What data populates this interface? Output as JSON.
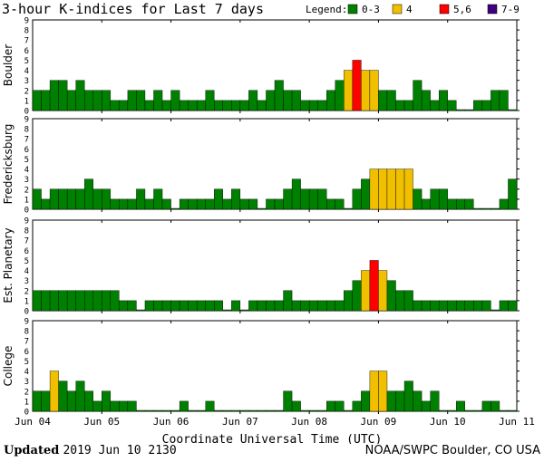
{
  "chart_data": {
    "type": "bar",
    "title": "3-hour K-indices for Last 7 days",
    "xlabel": "Coordinate Universal Time (UTC)",
    "ylim": [
      0,
      9
    ],
    "yticks": [
      "0",
      "1",
      "2",
      "3",
      "4",
      "5",
      "6",
      "7",
      "8",
      "9"
    ],
    "xticks": [
      "Jun 04",
      "Jun 05",
      "Jun 06",
      "Jun 07",
      "Jun 08",
      "Jun 09",
      "Jun 10",
      "Jun 11"
    ],
    "legend": {
      "title": "Legend:",
      "placement": "top-right",
      "items": [
        {
          "label": "0-3",
          "color": "#008000"
        },
        {
          "label": "4",
          "color": "#f0c000"
        },
        {
          "label": "5,6",
          "color": "#ff0000"
        },
        {
          "label": "7-9",
          "color": "#400080"
        }
      ]
    },
    "panels": [
      {
        "name": "Boulder",
        "values": [
          2,
          2,
          3,
          3,
          2,
          3,
          2,
          2,
          2,
          1,
          1,
          2,
          2,
          1,
          2,
          1,
          2,
          1,
          1,
          1,
          2,
          1,
          1,
          1,
          1,
          2,
          1,
          2,
          3,
          2,
          2,
          1,
          1,
          1,
          2,
          3,
          4,
          5,
          4,
          4,
          2,
          2,
          1,
          1,
          3,
          2,
          1,
          2,
          1,
          0,
          0,
          1,
          1,
          2,
          2,
          0
        ]
      },
      {
        "name": "Fredericksburg",
        "values": [
          2,
          1,
          2,
          2,
          2,
          2,
          3,
          2,
          2,
          1,
          1,
          1,
          2,
          1,
          2,
          1,
          0,
          1,
          1,
          1,
          1,
          2,
          1,
          2,
          1,
          1,
          0,
          1,
          1,
          2,
          3,
          2,
          2,
          2,
          1,
          1,
          0,
          2,
          3,
          4,
          4,
          4,
          4,
          4,
          2,
          1,
          2,
          2,
          1,
          1,
          1,
          0,
          0,
          0,
          1,
          3,
          2,
          2,
          0
        ]
      },
      {
        "name": "Est. Planetary",
        "values": [
          2,
          2,
          2,
          2,
          2,
          2,
          2,
          2,
          2,
          2,
          1,
          1,
          0,
          1,
          1,
          1,
          1,
          1,
          1,
          1,
          1,
          1,
          0,
          1,
          0,
          1,
          1,
          1,
          1,
          2,
          1,
          1,
          1,
          1,
          1,
          1,
          2,
          3,
          4,
          5,
          4,
          3,
          2,
          2,
          1,
          1,
          1,
          1,
          1,
          1,
          1,
          1,
          1,
          0,
          1,
          1,
          1,
          1,
          0
        ]
      },
      {
        "name": "College",
        "values": [
          2,
          2,
          4,
          3,
          2,
          3,
          2,
          1,
          2,
          1,
          1,
          1,
          0,
          0,
          0,
          0,
          0,
          1,
          0,
          0,
          1,
          0,
          0,
          0,
          0,
          0,
          0,
          0,
          0,
          2,
          1,
          0,
          0,
          0,
          1,
          1,
          0,
          1,
          2,
          4,
          4,
          2,
          2,
          3,
          2,
          1,
          2,
          0,
          0,
          1,
          0,
          0,
          1,
          1,
          0,
          0,
          0,
          0,
          0,
          0
        ]
      }
    ],
    "grid": false
  },
  "footer": {
    "updated_label": "Updated",
    "updated_time": "2019 Jun 10 2130",
    "credit": "NOAA/SWPC Boulder, CO USA"
  }
}
